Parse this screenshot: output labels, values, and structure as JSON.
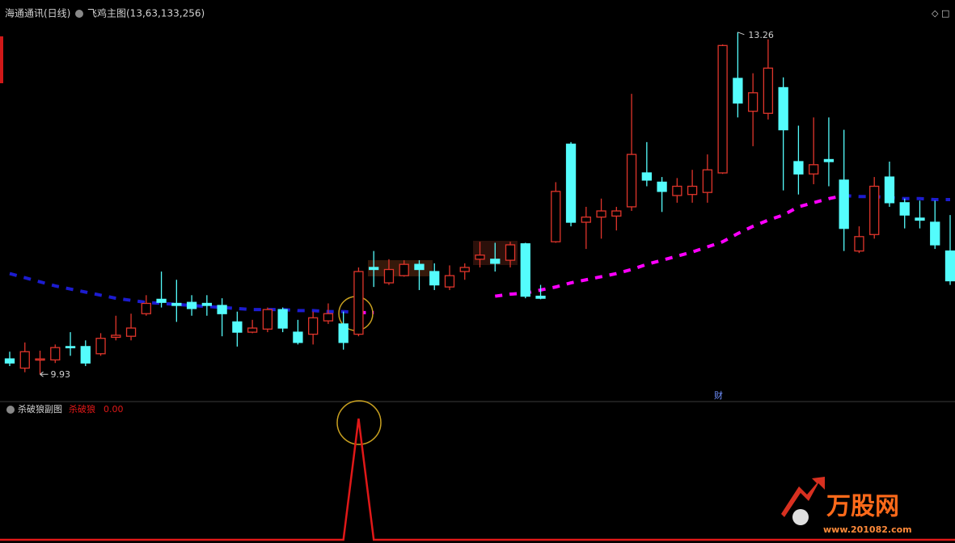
{
  "chart_data": [
    {
      "type": "candlestick",
      "title": "海通通讯(日线)",
      "subtitle": "飞鸡主图(13,63,133,256)",
      "up_color": "#e0352b",
      "down_color": "#54fcfc",
      "ylim": [
        9.68,
        13.51
      ],
      "ohlc": [
        [
          10.08,
          10.15,
          10.01,
          10.04
        ],
        [
          9.99,
          10.24,
          9.95,
          10.15
        ],
        [
          10.07,
          10.16,
          9.93,
          10.08
        ],
        [
          10.07,
          10.22,
          10.04,
          10.19
        ],
        [
          10.2,
          10.34,
          10.11,
          10.19
        ],
        [
          10.2,
          10.26,
          10.01,
          10.04
        ],
        [
          10.13,
          10.33,
          10.11,
          10.28
        ],
        [
          10.29,
          10.5,
          10.26,
          10.31
        ],
        [
          10.3,
          10.52,
          10.26,
          10.38
        ],
        [
          10.52,
          10.7,
          10.5,
          10.62
        ],
        [
          10.66,
          10.93,
          10.58,
          10.63
        ],
        [
          10.62,
          10.85,
          10.44,
          10.6
        ],
        [
          10.63,
          10.7,
          10.5,
          10.57
        ],
        [
          10.62,
          10.7,
          10.5,
          10.6
        ],
        [
          10.6,
          10.67,
          10.3,
          10.52
        ],
        [
          10.44,
          10.54,
          10.2,
          10.34
        ],
        [
          10.34,
          10.46,
          10.33,
          10.38
        ],
        [
          10.37,
          10.58,
          10.34,
          10.56
        ],
        [
          10.56,
          10.58,
          10.34,
          10.38
        ],
        [
          10.34,
          10.46,
          10.22,
          10.24
        ],
        [
          10.32,
          10.54,
          10.22,
          10.48
        ],
        [
          10.45,
          10.62,
          10.42,
          10.52
        ],
        [
          10.42,
          10.54,
          10.17,
          10.24
        ],
        [
          10.32,
          10.97,
          10.3,
          10.93
        ],
        [
          10.97,
          11.13,
          10.78,
          10.95
        ],
        [
          10.82,
          11.05,
          10.8,
          10.95
        ],
        [
          10.89,
          11.04,
          10.88,
          11.0
        ],
        [
          11.0,
          11.04,
          10.75,
          10.95
        ],
        [
          10.93,
          11.01,
          10.75,
          10.8
        ],
        [
          10.78,
          10.99,
          10.75,
          10.89
        ],
        [
          10.93,
          11.01,
          10.85,
          10.97
        ],
        [
          11.05,
          11.22,
          10.97,
          11.09
        ],
        [
          11.05,
          11.21,
          10.93,
          11.01
        ],
        [
          11.04,
          11.22,
          10.97,
          11.19
        ],
        [
          11.2,
          11.21,
          10.67,
          10.69
        ],
        [
          10.69,
          10.8,
          10.66,
          10.67
        ],
        [
          11.22,
          11.8,
          11.21,
          11.71
        ],
        [
          12.17,
          12.19,
          11.37,
          11.41
        ],
        [
          11.41,
          11.56,
          11.15,
          11.46
        ],
        [
          11.46,
          11.64,
          11.25,
          11.52
        ],
        [
          11.47,
          11.56,
          11.33,
          11.52
        ],
        [
          11.56,
          12.66,
          11.52,
          12.07
        ],
        [
          11.89,
          12.19,
          11.76,
          11.82
        ],
        [
          11.8,
          11.85,
          11.51,
          11.71
        ],
        [
          11.67,
          11.84,
          11.6,
          11.76
        ],
        [
          11.68,
          11.92,
          11.6,
          11.76
        ],
        [
          11.7,
          12.07,
          11.6,
          11.92
        ],
        [
          11.89,
          13.14,
          11.88,
          13.13
        ],
        [
          12.81,
          13.26,
          12.43,
          12.57
        ],
        [
          12.49,
          12.86,
          12.15,
          12.67
        ],
        [
          12.47,
          13.19,
          12.41,
          12.91
        ],
        [
          12.72,
          12.82,
          11.72,
          12.31
        ],
        [
          12.0,
          12.35,
          11.68,
          11.88
        ],
        [
          11.88,
          12.43,
          11.78,
          11.97
        ],
        [
          12.02,
          12.43,
          11.76,
          12.0
        ],
        [
          11.82,
          12.31,
          11.13,
          11.35
        ],
        [
          11.13,
          11.37,
          11.11,
          11.27
        ],
        [
          11.29,
          11.85,
          11.25,
          11.76
        ],
        [
          11.85,
          12.0,
          11.56,
          11.6
        ],
        [
          11.6,
          11.64,
          11.35,
          11.48
        ],
        [
          11.45,
          11.62,
          11.35,
          11.43
        ],
        [
          11.41,
          11.62,
          11.15,
          11.19
        ],
        [
          11.13,
          11.48,
          10.8,
          10.84
        ]
      ],
      "lines": [
        {
          "color": "#1c1cd0",
          "values": [
            10.91,
            10.87,
            10.83,
            10.79,
            10.76,
            10.73,
            10.7,
            10.67,
            10.65,
            10.63,
            10.62,
            10.61,
            10.6,
            10.59,
            10.58,
            10.57,
            10.56,
            10.56,
            10.56,
            10.55,
            10.55,
            10.54,
            10.54,
            10.53,
            null,
            null,
            null,
            null,
            null,
            null,
            null,
            null,
            null,
            null,
            null,
            null,
            null,
            null,
            null,
            null,
            null,
            null,
            null,
            null,
            null,
            null,
            null,
            null,
            null,
            null,
            null,
            null,
            null,
            null,
            null,
            11.67,
            11.66,
            11.66,
            11.65,
            11.64,
            11.64,
            11.63,
            11.63
          ]
        },
        {
          "color": "#ff00ff",
          "values": [
            null,
            null,
            null,
            null,
            null,
            null,
            null,
            null,
            null,
            null,
            null,
            null,
            null,
            null,
            null,
            null,
            null,
            null,
            null,
            null,
            null,
            null,
            null,
            10.53,
            10.53,
            null,
            null,
            null,
            null,
            null,
            null,
            null,
            10.69,
            10.71,
            10.72,
            10.75,
            10.78,
            10.82,
            10.85,
            10.88,
            10.91,
            10.95,
            11.0,
            11.04,
            11.08,
            11.12,
            11.17,
            11.22,
            11.3,
            11.37,
            11.43,
            11.48,
            11.56,
            11.6,
            11.64,
            11.67,
            null,
            null,
            null,
            null,
            null,
            null,
            null
          ]
        }
      ],
      "max_label": 13.26,
      "min_label": 9.93,
      "marker": "财"
    },
    {
      "type": "line",
      "title": "杀破狼副图",
      "ylim": [
        0,
        1
      ],
      "series": [
        {
          "name": "杀破狼",
          "color": "#e01818",
          "values": [
            0,
            0,
            0,
            0,
            0,
            0,
            0,
            0,
            0,
            0,
            0,
            0,
            0,
            0,
            0,
            0,
            0,
            0,
            0,
            0,
            0,
            0,
            0,
            1,
            0,
            0,
            0,
            0,
            0,
            0,
            0,
            0,
            0,
            0,
            0,
            0,
            0,
            0,
            0,
            0,
            0,
            0,
            0,
            0,
            0,
            0,
            0,
            0,
            0,
            0,
            0,
            0,
            0,
            0,
            0,
            0,
            0,
            0,
            0,
            0,
            0,
            0,
            0
          ]
        }
      ],
      "current": {
        "value": 0,
        "label": "0.00"
      }
    }
  ],
  "watermark": {
    "brand": "万股网",
    "url": "www.201082.com"
  }
}
